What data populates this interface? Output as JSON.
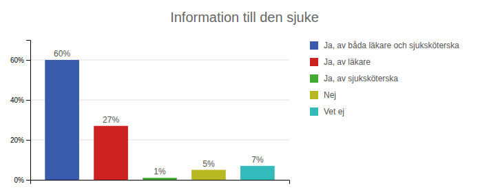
{
  "chart_data": {
    "type": "bar",
    "title": "Information till den sjuke",
    "categories": [
      "Ja, av båda läkare och sjuksköterska",
      "Ja, av läkare",
      "Ja, av sjuksköterska",
      "Nej",
      "Vet ej"
    ],
    "values": [
      60,
      27,
      1,
      5,
      7
    ],
    "value_labels": [
      "60%",
      "27%",
      "1%",
      "5%",
      "7%"
    ],
    "colors": [
      "#3a5aab",
      "#cc2222",
      "#44aa33",
      "#b8b822",
      "#33bbbb"
    ],
    "ylim": [
      0,
      70
    ],
    "yticks": [
      {
        "value": 0,
        "label": "0%"
      },
      {
        "value": 20,
        "label": "20%"
      },
      {
        "value": 40,
        "label": "40%"
      },
      {
        "value": 60,
        "label": "60%"
      }
    ],
    "grid": true,
    "data_labels": true,
    "legend": "right",
    "tick_labels": "y"
  }
}
